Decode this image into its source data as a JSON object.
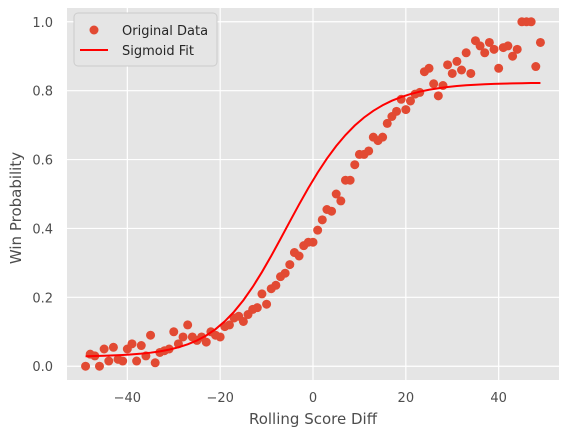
{
  "chart_data": {
    "type": "scatter",
    "xlabel": "Rolling Score Diff",
    "ylabel": "Win Probability",
    "xlim": [
      -53,
      53
    ],
    "ylim": [
      -0.04,
      1.04
    ],
    "xticks": [
      -40,
      -20,
      0,
      20,
      40
    ],
    "xtick_labels": [
      "−40",
      "−20",
      "0",
      "20",
      "40"
    ],
    "yticks": [
      0.0,
      0.2,
      0.4,
      0.6,
      0.8,
      1.0
    ],
    "ytick_labels": [
      "0.0",
      "0.2",
      "0.4",
      "0.6",
      "0.8",
      "1.0"
    ],
    "grid": true,
    "legend_position": "top-left",
    "colors": {
      "background": "#e5e5e5",
      "grid": "#ffffff",
      "scatter": "#e24a33",
      "fit": "#ff0000"
    },
    "series": [
      {
        "name": "Original Data",
        "kind": "scatter",
        "x": [
          -49,
          -48,
          -47,
          -46,
          -45,
          -44,
          -43,
          -42,
          -41,
          -40,
          -39,
          -38,
          -37,
          -36,
          -35,
          -34,
          -33,
          -32,
          -31,
          -30,
          -29,
          -28,
          -27,
          -26,
          -25,
          -24,
          -23,
          -22,
          -21,
          -20,
          -19,
          -18,
          -17,
          -16,
          -15,
          -14,
          -13,
          -12,
          -11,
          -10,
          -9,
          -8,
          -7,
          -6,
          -5,
          -4,
          -3,
          -2,
          -1,
          0,
          1,
          2,
          3,
          4,
          5,
          6,
          7,
          8,
          9,
          10,
          11,
          12,
          13,
          14,
          15,
          16,
          17,
          18,
          19,
          20,
          21,
          22,
          23,
          24,
          25,
          26,
          27,
          28,
          29,
          30,
          31,
          32,
          33,
          34,
          35,
          36,
          37,
          38,
          39,
          40,
          41,
          42,
          43,
          44,
          45,
          46,
          47,
          48,
          49
        ],
        "y": [
          0.0,
          0.035,
          0.03,
          0.0,
          0.05,
          0.015,
          0.055,
          0.02,
          0.015,
          0.05,
          0.065,
          0.015,
          0.06,
          0.03,
          0.09,
          0.01,
          0.04,
          0.045,
          0.05,
          0.1,
          0.065,
          0.085,
          0.12,
          0.085,
          0.075,
          0.085,
          0.07,
          0.1,
          0.09,
          0.085,
          0.115,
          0.12,
          0.14,
          0.145,
          0.13,
          0.15,
          0.165,
          0.17,
          0.21,
          0.18,
          0.225,
          0.235,
          0.26,
          0.27,
          0.295,
          0.33,
          0.32,
          0.35,
          0.36,
          0.36,
          0.395,
          0.425,
          0.455,
          0.45,
          0.5,
          0.48,
          0.54,
          0.54,
          0.585,
          0.615,
          0.615,
          0.625,
          0.665,
          0.655,
          0.665,
          0.705,
          0.725,
          0.74,
          0.775,
          0.745,
          0.77,
          0.79,
          0.795,
          0.855,
          0.865,
          0.82,
          0.785,
          0.815,
          0.875,
          0.85,
          0.885,
          0.86,
          0.91,
          0.85,
          0.945,
          0.93,
          0.91,
          0.94,
          0.92,
          0.865,
          0.925,
          0.93,
          0.9,
          0.92,
          1.0,
          1.0,
          1.0,
          0.87,
          0.94
        ]
      },
      {
        "name": "Sigmoid Fit",
        "kind": "line",
        "x": [
          -49,
          -47,
          -45,
          -43,
          -41,
          -39,
          -37,
          -35,
          -33,
          -31,
          -29,
          -27,
          -25,
          -23,
          -21,
          -19,
          -17,
          -15,
          -13,
          -11,
          -9,
          -7,
          -5,
          -3,
          -1,
          1,
          3,
          5,
          7,
          9,
          11,
          13,
          15,
          17,
          19,
          21,
          23,
          25,
          27,
          29,
          31,
          33,
          35,
          37,
          39,
          41,
          43,
          45,
          47,
          49
        ],
        "y": [
          0.0291,
          0.0297,
          0.0305,
          0.0314,
          0.0326,
          0.0343,
          0.0364,
          0.0393,
          0.0431,
          0.0481,
          0.0548,
          0.0635,
          0.0747,
          0.0892,
          0.1076,
          0.1305,
          0.1584,
          0.1916,
          0.2301,
          0.2734,
          0.3203,
          0.3697,
          0.42,
          0.4697,
          0.5174,
          0.5621,
          0.6029,
          0.6394,
          0.6713,
          0.6988,
          0.7221,
          0.7415,
          0.7576,
          0.7708,
          0.7815,
          0.7902,
          0.7971,
          0.8027,
          0.8071,
          0.8106,
          0.8134,
          0.8156,
          0.8173,
          0.8187,
          0.8197,
          0.8206,
          0.8212,
          0.8217,
          0.8221,
          0.8224
        ]
      }
    ]
  }
}
